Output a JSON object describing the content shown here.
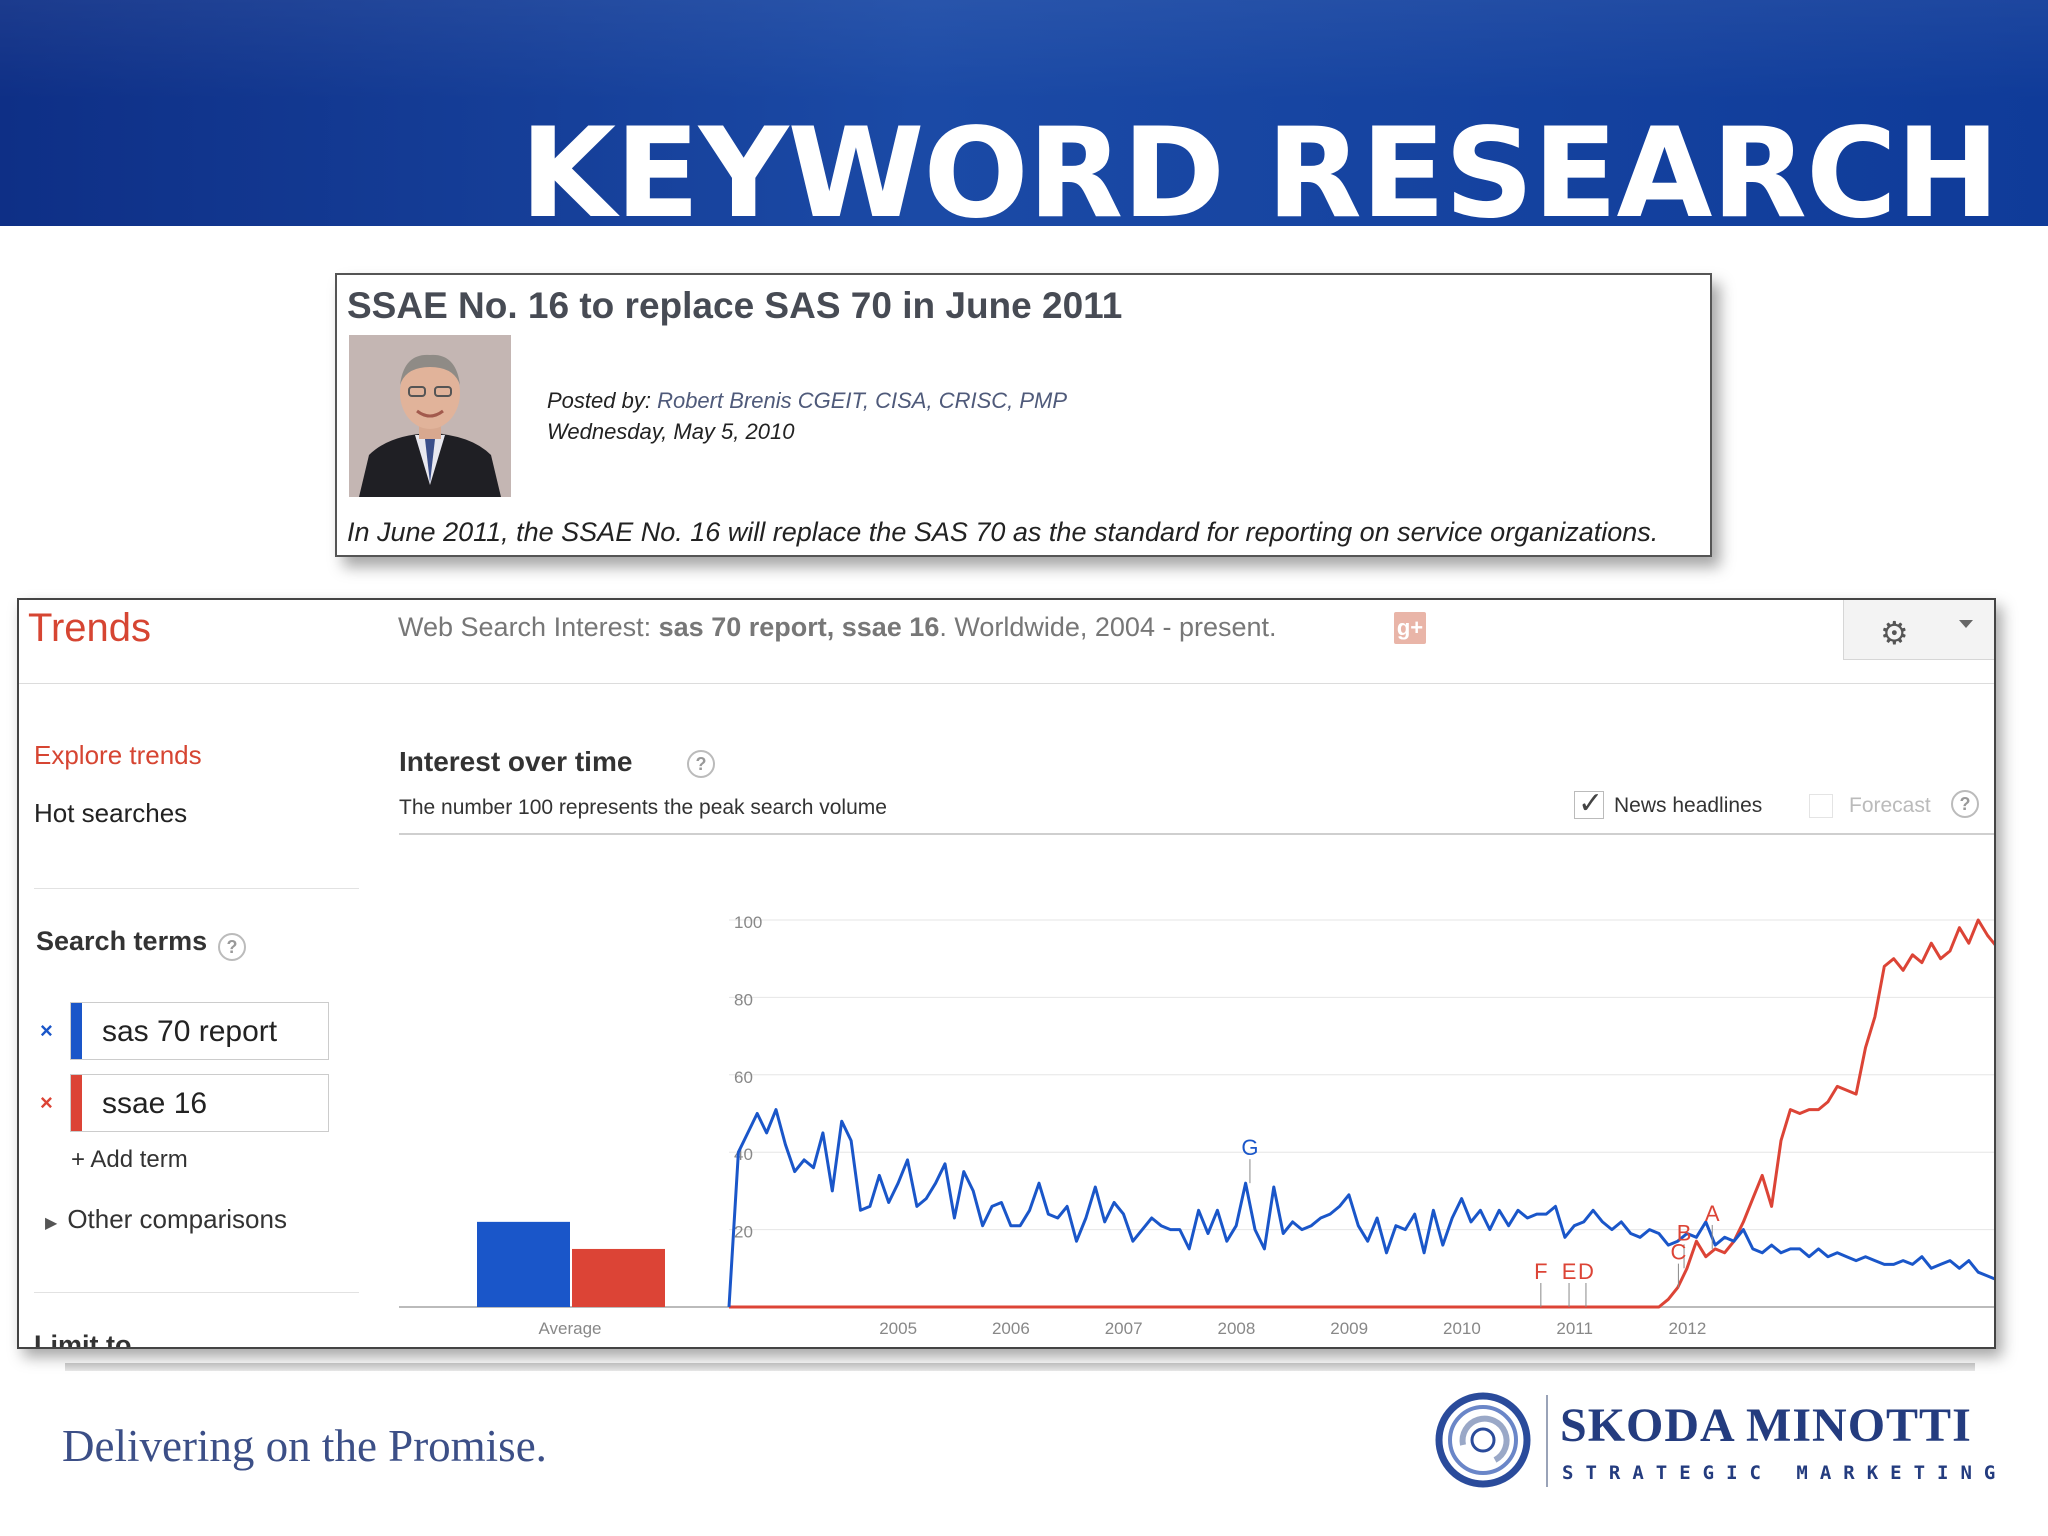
{
  "slide": {
    "title": "KEYWORD RESEARCH",
    "tagline": "Delivering on the Promise.",
    "company_name": "SKODA MINOTTI",
    "company_tagline": "STRATEGIC MARKETING"
  },
  "article": {
    "title": "SSAE No. 16 to replace SAS 70 in June 2011",
    "posted_by_label": "Posted by:",
    "author": "Robert Brenis CGEIT, CISA, CRISC, PMP",
    "date": "Wednesday, May 5, 2010",
    "summary": "In June 2011, the SSAE No. 16 will replace the SAS 70 as the standard for reporting on service organizations."
  },
  "trends": {
    "logo": "Trends",
    "summary_prefix": "Web Search Interest: ",
    "summary_terms": "sas 70 report, ssae 16",
    "summary_suffix": ". Worldwide, 2004 - present.",
    "gplus_icon": "g+",
    "sidebar": {
      "explore": "Explore trends",
      "hot": "Hot searches",
      "search_terms_label": "Search terms",
      "help": "?",
      "terms": [
        {
          "label": "sas 70 report",
          "color": "#1a56c9",
          "remove": "×"
        },
        {
          "label": "ssae 16",
          "color": "#dc4436",
          "remove": "×"
        }
      ],
      "add_term": "+ Add term",
      "other_comparisons": "Other comparisons",
      "limit_to": "Limit to"
    },
    "chart_header": {
      "title": "Interest over time",
      "subtitle": "The number 100 represents the peak search volume",
      "news_label": "News headlines",
      "news_checked": "✓",
      "forecast_label": "Forecast"
    }
  },
  "chart_data": {
    "type": "line",
    "title": "Interest over time",
    "ylim": [
      0,
      100
    ],
    "y_ticks": [
      20,
      40,
      60,
      80,
      100
    ],
    "x_ticks": [
      "2005",
      "2006",
      "2007",
      "2008",
      "2009",
      "2010",
      "2011",
      "2012"
    ],
    "grid": true,
    "average_bars": {
      "label": "Average",
      "values": [
        {
          "series": "sas 70 report",
          "value": 22
        },
        {
          "series": "ssae 16",
          "value": 15
        }
      ]
    },
    "series": [
      {
        "name": "sas 70 report",
        "color": "#1a56c9",
        "x_start": 2004.0,
        "x_step": 0.0833,
        "values": [
          0,
          40,
          45,
          50,
          45,
          51,
          42,
          35,
          38,
          36,
          45,
          30,
          48,
          43,
          25,
          26,
          34,
          27,
          32,
          38,
          26,
          28,
          32,
          37,
          23,
          35,
          30,
          21,
          26,
          27,
          21,
          21,
          25,
          32,
          24,
          23,
          26,
          17,
          23,
          31,
          22,
          27,
          24,
          17,
          20,
          23,
          21,
          20,
          20,
          15,
          25,
          19,
          25,
          17,
          21,
          32,
          20,
          15,
          31,
          19,
          22,
          20,
          21,
          23,
          24,
          26,
          29,
          21,
          17,
          23,
          14,
          21,
          20,
          24,
          14,
          25,
          16,
          23,
          28,
          22,
          25,
          20,
          25,
          21,
          25,
          23,
          24,
          24,
          26,
          18,
          21,
          22,
          25,
          22,
          20,
          22,
          19,
          18,
          20,
          19,
          16,
          17,
          19,
          18,
          22,
          16,
          18,
          17,
          20,
          15,
          14,
          16,
          14,
          15,
          15,
          13,
          15,
          13,
          14,
          13,
          12,
          13,
          12,
          11,
          11,
          12,
          11,
          13,
          10,
          11,
          12,
          10,
          12,
          9,
          8,
          7
        ]
      },
      {
        "name": "ssae 16",
        "color": "#dc4436",
        "x_start": 2004.0,
        "x_step": 0.0833,
        "values": [
          0,
          0,
          0,
          0,
          0,
          0,
          0,
          0,
          0,
          0,
          0,
          0,
          0,
          0,
          0,
          0,
          0,
          0,
          0,
          0,
          0,
          0,
          0,
          0,
          0,
          0,
          0,
          0,
          0,
          0,
          0,
          0,
          0,
          0,
          0,
          0,
          0,
          0,
          0,
          0,
          0,
          0,
          0,
          0,
          0,
          0,
          0,
          0,
          0,
          0,
          0,
          0,
          0,
          0,
          0,
          0,
          0,
          0,
          0,
          0,
          0,
          0,
          0,
          0,
          0,
          0,
          0,
          0,
          0,
          0,
          0,
          0,
          0,
          0,
          0,
          0,
          0,
          0,
          0,
          0,
          0,
          0,
          0,
          0,
          0,
          0,
          0,
          0,
          0,
          0,
          0,
          0,
          0,
          0,
          0,
          0,
          0,
          0,
          0,
          0,
          2,
          5,
          10,
          17,
          13,
          15,
          14,
          17,
          22,
          28,
          34,
          26,
          43,
          51,
          50,
          51,
          51,
          53,
          57,
          56,
          55,
          67,
          75,
          88,
          90,
          87,
          91,
          89,
          94,
          90,
          92,
          98,
          94,
          100,
          96,
          93
        ]
      }
    ],
    "annotations": [
      {
        "label": "A",
        "series": "ssae 16",
        "x": 2012.72
      },
      {
        "label": "B",
        "series": "ssae 16",
        "x": 2012.47
      },
      {
        "label": "C",
        "series": "ssae 16",
        "x": 2012.42
      },
      {
        "label": "D",
        "series": "ssae 16",
        "x": 2011.6
      },
      {
        "label": "E",
        "series": "ssae 16",
        "x": 2011.45
      },
      {
        "label": "F",
        "series": "ssae 16",
        "x": 2011.2
      },
      {
        "label": "G",
        "series": "sas 70 report",
        "x": 2008.62
      }
    ]
  }
}
